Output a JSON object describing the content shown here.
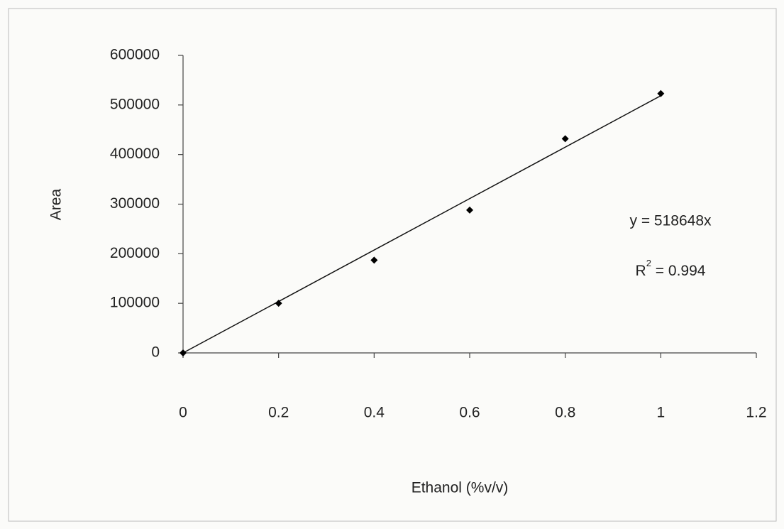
{
  "chart_data": {
    "type": "scatter",
    "x_label": "Ethanol (%v/v)",
    "y_label": "Area",
    "x": [
      0,
      0.2,
      0.4,
      0.6,
      0.8,
      1
    ],
    "values": [
      0,
      100000,
      187000,
      288000,
      432000,
      523000
    ],
    "color": "#000000",
    "xlim": [
      0,
      1.2
    ],
    "xticks": [
      0,
      0.2,
      0.4,
      0.6,
      0.8,
      1,
      1.2
    ],
    "ylim": [
      0,
      600000
    ],
    "yticks": [
      0,
      100000,
      200000,
      300000,
      400000,
      500000,
      600000
    ],
    "trendline": {
      "slope": 518648,
      "equation": "y = 518648x",
      "r_squared": {
        "symbol": "R",
        "exponent": "2",
        "text": " = 0.994"
      }
    }
  }
}
